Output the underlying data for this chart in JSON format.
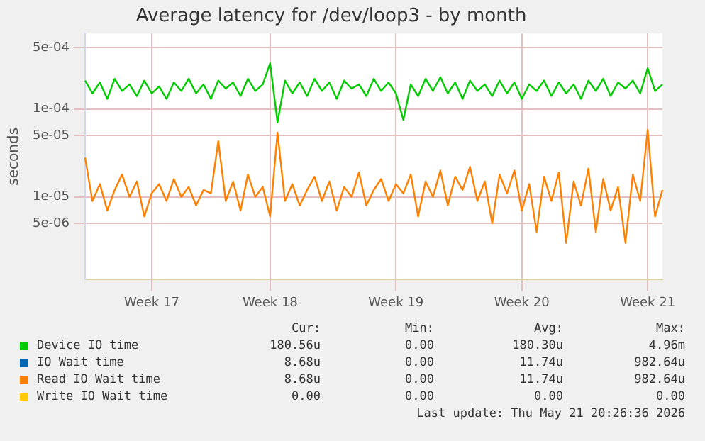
{
  "chart_data": {
    "type": "line",
    "title": "Average latency for /dev/loop3 - by month",
    "ylabel": "seconds",
    "categories": [
      null,
      null,
      null,
      null,
      null,
      null,
      null,
      null,
      null,
      "Week 17",
      null,
      null,
      null,
      null,
      null,
      null,
      null,
      null,
      null,
      null,
      null,
      null,
      null,
      null,
      null,
      "Week 18",
      null,
      null,
      null,
      null,
      null,
      null,
      null,
      null,
      null,
      null,
      null,
      null,
      null,
      null,
      null,
      null,
      "Week 19",
      null,
      null,
      null,
      null,
      null,
      null,
      null,
      null,
      null,
      null,
      null,
      null,
      null,
      null,
      null,
      null,
      "Week 20",
      null,
      null,
      null,
      null,
      null,
      null,
      null,
      null,
      null,
      null,
      null,
      null,
      null,
      null,
      null,
      null,
      "Week 21",
      null,
      null
    ],
    "series": [
      {
        "name": "Device IO time",
        "color": "#00cc00",
        "values": [
          0.00021,
          0.00015,
          0.0002,
          0.00013,
          0.00022,
          0.00016,
          0.00019,
          0.00014,
          0.00021,
          0.00015,
          0.00018,
          0.00013,
          0.0002,
          0.00016,
          0.00022,
          0.00015,
          0.00019,
          0.00013,
          0.00021,
          0.00017,
          0.0002,
          0.00014,
          0.00022,
          0.00016,
          0.00019,
          0.00033,
          7e-05,
          0.00021,
          0.00015,
          0.0002,
          0.00014,
          0.00022,
          0.00016,
          0.0002,
          0.00013,
          0.00021,
          0.00017,
          0.00019,
          0.00014,
          0.00022,
          0.00016,
          0.0002,
          0.00015,
          7.5e-05,
          0.00019,
          0.00014,
          0.00022,
          0.00016,
          0.00023,
          0.00015,
          0.0002,
          0.00013,
          0.00021,
          0.00016,
          0.00019,
          0.00014,
          0.00021,
          0.00015,
          0.0002,
          0.00013,
          0.00019,
          0.00016,
          0.00021,
          0.00014,
          0.0002,
          0.00015,
          0.00019,
          0.00013,
          0.00021,
          0.00016,
          0.00022,
          0.00014,
          0.0002,
          0.00017,
          0.00021,
          0.00015,
          0.00029,
          0.00016,
          0.00019
        ]
      },
      {
        "name": "IO Wait time",
        "color": "#0066b3",
        "values": [
          null,
          null,
          null,
          null,
          null,
          null,
          null,
          null,
          null,
          null,
          null,
          null,
          null,
          null,
          null,
          null,
          null,
          null,
          null,
          null,
          null,
          null,
          null,
          null,
          null,
          null,
          null,
          null,
          null,
          null,
          null,
          null,
          null,
          null,
          null,
          null,
          null,
          null,
          null,
          null,
          null,
          null,
          null,
          null,
          null,
          null,
          null,
          null,
          null,
          null,
          null,
          null,
          null,
          null,
          null,
          null,
          null,
          null,
          null,
          null,
          null,
          null,
          null,
          null,
          null,
          null,
          null,
          null,
          null,
          null,
          null,
          null,
          null,
          null,
          null,
          null,
          null,
          null,
          null
        ]
      },
      {
        "name": "Read IO Wait time",
        "color": "#ff8000",
        "values": [
          2.8e-05,
          9e-06,
          1.4e-05,
          7e-06,
          1.2e-05,
          1.8e-05,
          1e-05,
          1.5e-05,
          6e-06,
          1.1e-05,
          1.4e-05,
          9e-06,
          1.6e-05,
          1e-05,
          1.3e-05,
          8e-06,
          1.2e-05,
          1.1e-05,
          4.3e-05,
          9e-06,
          1.5e-05,
          7e-06,
          1.8e-05,
          1e-05,
          1.3e-05,
          6e-06,
          5.4e-05,
          9e-06,
          1.4e-05,
          8e-06,
          1.2e-05,
          1.7e-05,
          9e-06,
          1.5e-05,
          7e-06,
          1.3e-05,
          1e-05,
          1.9e-05,
          8e-06,
          1.2e-05,
          1.6e-05,
          9e-06,
          1.4e-05,
          1.1e-05,
          1.8e-05,
          6e-06,
          1.5e-05,
          1e-05,
          2e-05,
          8e-06,
          1.7e-05,
          1.2e-05,
          2.2e-05,
          9e-06,
          1.5e-05,
          5e-06,
          1.8e-05,
          1.1e-05,
          2e-05,
          7e-06,
          1.4e-05,
          4e-06,
          1.7e-05,
          9e-06,
          1.9e-05,
          3e-06,
          1.5e-05,
          8e-06,
          2.1e-05,
          4e-06,
          1.6e-05,
          7e-06,
          1.3e-05,
          3e-06,
          1.8e-05,
          9e-06,
          5.8e-05,
          6e-06,
          1.2e-05
        ]
      },
      {
        "name": "Write IO Wait time",
        "color": "#ffcc00",
        "values": [
          null,
          null,
          null,
          null,
          null,
          null,
          null,
          null,
          null,
          null,
          null,
          null,
          null,
          null,
          null,
          null,
          null,
          null,
          null,
          null,
          null,
          null,
          null,
          null,
          null,
          null,
          null,
          null,
          null,
          null,
          null,
          null,
          null,
          null,
          null,
          null,
          null,
          null,
          null,
          null,
          null,
          null,
          null,
          null,
          null,
          null,
          null,
          null,
          null,
          null,
          null,
          null,
          null,
          null,
          null,
          null,
          null,
          null,
          null,
          null,
          null,
          null,
          null,
          null,
          null,
          null,
          null,
          null,
          null,
          null,
          null,
          null,
          null,
          null,
          null,
          null,
          null,
          null,
          null
        ]
      }
    ],
    "log": "y",
    "ylim": [
      1.15e-06,
      0.00072
    ],
    "yticks": [
      {
        "value": 0.0005,
        "label": "5e-04"
      },
      {
        "value": 0.0001,
        "label": "1e-04"
      },
      {
        "value": 5e-05,
        "label": "5e-05"
      },
      {
        "value": 1e-05,
        "label": "1e-05"
      },
      {
        "value": 5e-06,
        "label": "5e-06"
      }
    ],
    "grid": true,
    "legend": "bottom",
    "annotations": [
      "Cur:",
      "Min:",
      "Avg:",
      "Max:",
      "180.56u",
      "0.00",
      "180.30u",
      "4.96m",
      "8.68u",
      "0.00",
      "11.74u",
      "982.64u",
      "8.68u",
      "0.00",
      "11.74u",
      "982.64u",
      "0.00",
      "0.00",
      "0.00",
      "0.00",
      "Last update: Thu May 21 20:26:36 2026"
    ]
  }
}
